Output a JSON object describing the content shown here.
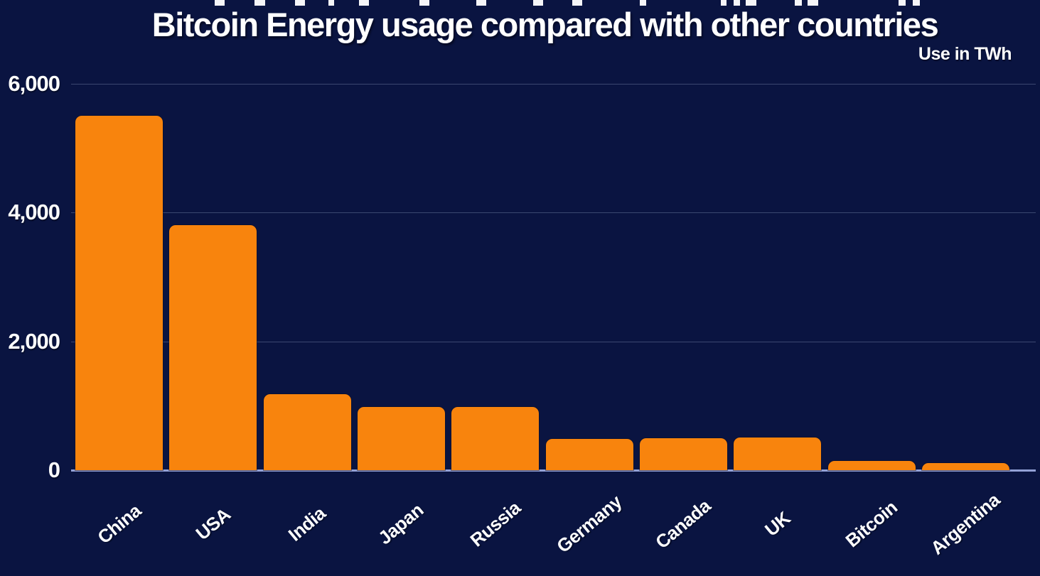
{
  "header": {
    "title": "Bitcoin Energy usage compared with other countries",
    "unit_label": "Use in TWh"
  },
  "chart_data": {
    "type": "bar",
    "title": "Bitcoin Energy usage compared with other countries",
    "subtitle": "Use in TWh",
    "xlabel": "",
    "ylabel": "Use in TWh",
    "categories": [
      "China",
      "USA",
      "India",
      "Japan",
      "Russia",
      "Germany",
      "Canada",
      "UK",
      "Bitcoin",
      "Argentina"
    ],
    "values": [
      5500,
      3800,
      1180,
      980,
      980,
      490,
      495,
      505,
      145,
      110
    ],
    "ylim": [
      0,
      6000
    ],
    "yticks": [
      {
        "value": 0,
        "label": "0"
      },
      {
        "value": 2000,
        "label": "2,000"
      },
      {
        "value": 4000,
        "label": "4,000"
      },
      {
        "value": 6000,
        "label": "6,000"
      }
    ],
    "grid": "horizontal gridlines on",
    "legend": "none",
    "bar_corner": "rounded-top",
    "x_tick_rotation_deg": -40
  },
  "colors": {
    "background": "#0a1441",
    "bar": "#f8840d",
    "gridline": "#3b4770",
    "axis_line": "#93a1d6",
    "text": "#ffffff"
  },
  "top_edge_marks": [
    {
      "x": 302,
      "w": 14
    },
    {
      "x": 358,
      "w": 15
    },
    {
      "x": 415,
      "w": 14
    },
    {
      "x": 462,
      "w": 8
    },
    {
      "x": 505,
      "w": 14
    },
    {
      "x": 590,
      "w": 14
    },
    {
      "x": 670,
      "w": 14
    },
    {
      "x": 750,
      "w": 14
    },
    {
      "x": 805,
      "w": 14
    },
    {
      "x": 900,
      "w": 9
    },
    {
      "x": 1014,
      "w": 8
    },
    {
      "x": 1032,
      "w": 9
    },
    {
      "x": 1049,
      "w": 15
    },
    {
      "x": 1118,
      "w": 10
    },
    {
      "x": 1136,
      "w": 15
    },
    {
      "x": 1264,
      "w": 10
    },
    {
      "x": 1284,
      "w": 10
    }
  ]
}
